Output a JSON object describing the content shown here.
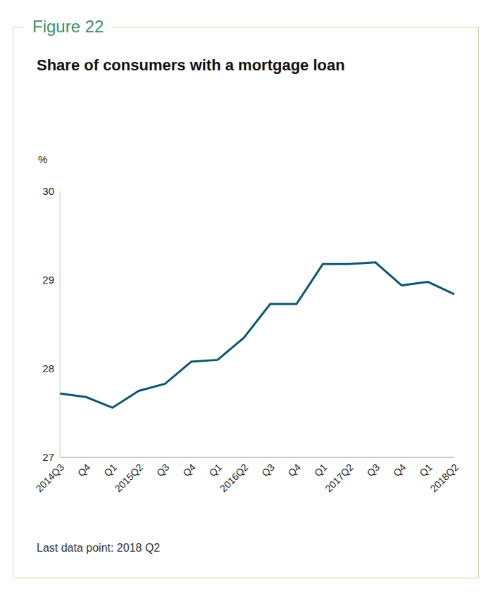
{
  "chart_data": {
    "type": "line",
    "figure_label": "Figure 22",
    "title": "Share of consumers with a mortgage loan",
    "y_label": "%",
    "footnote": "Last data point: 2018 Q2",
    "categories": [
      "2014Q3",
      "Q4",
      "Q1",
      "2015Q2",
      "Q3",
      "Q4",
      "Q1",
      "2016Q2",
      "Q3",
      "Q4",
      "Q1",
      "2017Q2",
      "Q3",
      "Q4",
      "Q1",
      "2018Q2"
    ],
    "values": [
      27.72,
      27.68,
      27.56,
      27.75,
      27.83,
      28.08,
      28.1,
      28.35,
      28.73,
      28.73,
      29.18,
      29.18,
      29.2,
      28.94,
      28.98,
      28.84
    ],
    "color": "#0d5770",
    "ylim": [
      27,
      30
    ],
    "yticks": [
      27,
      28,
      29,
      30
    ],
    "grid": false,
    "marker": "none",
    "line_style": "solid"
  }
}
